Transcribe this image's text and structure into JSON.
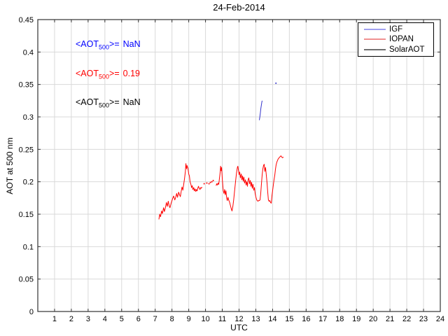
{
  "title": "24-Feb-2014",
  "axis": {
    "xlabel": "UTC",
    "ylabel": "AOT at 500 nm"
  },
  "annotations": [
    {
      "prefix": "<AOT",
      "sub": "500",
      "suffix": ">=",
      "value": "NaN",
      "color": "#0000ff"
    },
    {
      "prefix": "<AOT",
      "sub": "500",
      "suffix": ">=",
      "value": "0.19",
      "color": "#ff0000"
    },
    {
      "prefix": "<AOT",
      "sub": "500",
      "suffix": ">=",
      "value": "NaN",
      "color": "#000000"
    }
  ],
  "legend": {
    "position": "top-right",
    "entries": [
      {
        "label": "IGF",
        "swatch_color": "#a0a0f0"
      },
      {
        "label": "IOPAN",
        "swatch_color": "#f09090"
      },
      {
        "label": "SolarAOT",
        "swatch_color": "#707070"
      }
    ]
  },
  "colors": {
    "grid": "#d9d9d9",
    "axis_box": "#333333",
    "tick": "#333333"
  },
  "chart_data": {
    "type": "line",
    "title": "24-Feb-2014",
    "xlabel": "UTC",
    "ylabel": "AOT at 500 nm",
    "xlim": [
      0,
      24
    ],
    "ylim": [
      0,
      0.45
    ],
    "grid": true,
    "legend_position": "top-right",
    "xticks": [
      1,
      2,
      3,
      4,
      5,
      6,
      7,
      8,
      9,
      10,
      11,
      12,
      13,
      14,
      15,
      16,
      17,
      18,
      19,
      20,
      21,
      22,
      23,
      24
    ],
    "yticks": [
      0,
      0.05,
      0.1,
      0.15,
      0.2,
      0.25,
      0.3,
      0.35,
      0.4,
      0.45
    ],
    "ytick_labels": [
      "0",
      "0.05",
      "0.1",
      "0.15",
      "0.2",
      "0.25",
      "0.3",
      "0.35",
      "0.4",
      "0.45"
    ],
    "series": [
      {
        "name": "IGF",
        "color": "#3333cc",
        "mean_aot500": "NaN",
        "segments": [
          [
            [
              13.21,
              0.295
            ],
            [
              13.24,
              0.3
            ],
            [
              13.27,
              0.306
            ],
            [
              13.3,
              0.313
            ],
            [
              13.33,
              0.318
            ],
            [
              13.36,
              0.323
            ],
            [
              13.38,
              0.325
            ]
          ],
          [
            [
              14.2,
              0.352
            ]
          ]
        ]
      },
      {
        "name": "IOPAN",
        "color": "#ff0000",
        "mean_aot500": 0.19,
        "segments": [
          [
            [
              7.22,
              0.142
            ],
            [
              7.27,
              0.15
            ],
            [
              7.32,
              0.146
            ],
            [
              7.38,
              0.155
            ],
            [
              7.43,
              0.151
            ],
            [
              7.5,
              0.16
            ],
            [
              7.55,
              0.154
            ],
            [
              7.6,
              0.159
            ],
            [
              7.67,
              0.168
            ],
            [
              7.72,
              0.162
            ],
            [
              7.78,
              0.17
            ],
            [
              7.83,
              0.163
            ],
            [
              7.88,
              0.16
            ],
            [
              7.95,
              0.167
            ],
            [
              8.0,
              0.171
            ],
            [
              8.05,
              0.175
            ],
            [
              8.1,
              0.178
            ],
            [
              8.17,
              0.172
            ],
            [
              8.22,
              0.176
            ],
            [
              8.28,
              0.182
            ],
            [
              8.33,
              0.176
            ],
            [
              8.4,
              0.184
            ],
            [
              8.45,
              0.18
            ],
            [
              8.5,
              0.177
            ],
            [
              8.55,
              0.185
            ],
            [
              8.6,
              0.192
            ],
            [
              8.65,
              0.187
            ],
            [
              8.7,
              0.196
            ],
            [
              8.75,
              0.205
            ],
            [
              8.8,
              0.216
            ],
            [
              8.83,
              0.228
            ],
            [
              8.87,
              0.22
            ],
            [
              8.9,
              0.225
            ],
            [
              8.95,
              0.221
            ],
            [
              9.0,
              0.212
            ],
            [
              9.04,
              0.209
            ],
            [
              9.08,
              0.2
            ],
            [
              9.13,
              0.196
            ],
            [
              9.17,
              0.191
            ],
            [
              9.21,
              0.194
            ],
            [
              9.25,
              0.188
            ],
            [
              9.3,
              0.191
            ],
            [
              9.33,
              0.186
            ],
            [
              9.38,
              0.189
            ],
            [
              9.42,
              0.185
            ],
            [
              9.46,
              0.188
            ],
            [
              9.5,
              0.186
            ],
            [
              9.54,
              0.19
            ],
            [
              9.58,
              0.193
            ],
            [
              9.63,
              0.19
            ],
            [
              9.67,
              0.188
            ],
            [
              9.71,
              0.191
            ],
            [
              9.75,
              0.19
            ],
            [
              9.79,
              0.192
            ]
          ],
          [
            [
              9.92,
              0.197
            ]
          ],
          [
            [
              10.08,
              0.198
            ]
          ],
          [
            [
              10.21,
              0.197
            ]
          ],
          [
            [
              10.29,
              0.199
            ]
          ],
          [
            [
              10.38,
              0.2
            ]
          ],
          [
            [
              10.46,
              0.202
            ]
          ],
          [
            [
              10.63,
              0.194
            ],
            [
              10.67,
              0.197
            ],
            [
              10.71,
              0.195
            ],
            [
              10.75,
              0.198
            ],
            [
              10.79,
              0.196
            ],
            [
              10.83,
              0.205
            ],
            [
              10.88,
              0.216
            ],
            [
              10.9,
              0.224
            ],
            [
              10.93,
              0.217
            ],
            [
              10.96,
              0.222
            ],
            [
              11.0,
              0.205
            ],
            [
              11.03,
              0.195
            ],
            [
              11.06,
              0.186
            ],
            [
              11.1,
              0.182
            ],
            [
              11.14,
              0.188
            ],
            [
              11.18,
              0.18
            ],
            [
              11.22,
              0.186
            ],
            [
              11.26,
              0.175
            ],
            [
              11.3,
              0.171
            ],
            [
              11.34,
              0.176
            ],
            [
              11.38,
              0.172
            ],
            [
              11.43,
              0.169
            ],
            [
              11.48,
              0.164
            ],
            [
              11.54,
              0.158
            ],
            [
              11.58,
              0.155
            ],
            [
              11.63,
              0.162
            ],
            [
              11.68,
              0.172
            ],
            [
              11.73,
              0.185
            ],
            [
              11.79,
              0.2
            ],
            [
              11.85,
              0.214
            ],
            [
              11.9,
              0.222
            ],
            [
              11.93,
              0.224
            ],
            [
              11.97,
              0.217
            ],
            [
              12.0,
              0.211
            ],
            [
              12.04,
              0.215
            ],
            [
              12.08,
              0.206
            ],
            [
              12.13,
              0.212
            ],
            [
              12.17,
              0.203
            ],
            [
              12.21,
              0.209
            ],
            [
              12.25,
              0.201
            ],
            [
              12.29,
              0.207
            ],
            [
              12.33,
              0.198
            ],
            [
              12.38,
              0.203
            ],
            [
              12.42,
              0.195
            ],
            [
              12.46,
              0.2
            ],
            [
              12.5,
              0.193
            ],
            [
              12.54,
              0.203
            ],
            [
              12.58,
              0.206
            ],
            [
              12.63,
              0.197
            ],
            [
              12.67,
              0.202
            ],
            [
              12.71,
              0.193
            ],
            [
              12.75,
              0.199
            ],
            [
              12.79,
              0.19
            ],
            [
              12.83,
              0.196
            ],
            [
              12.88,
              0.187
            ],
            [
              12.92,
              0.191
            ],
            [
              12.96,
              0.182
            ],
            [
              13.0,
              0.177
            ],
            [
              13.04,
              0.173
            ],
            [
              13.08,
              0.171
            ],
            [
              13.13,
              0.17
            ],
            [
              13.17,
              0.171
            ],
            [
              13.21,
              0.171
            ],
            [
              13.25,
              0.172
            ],
            [
              13.29,
              0.181
            ],
            [
              13.33,
              0.195
            ],
            [
              13.38,
              0.211
            ],
            [
              13.42,
              0.22
            ],
            [
              13.46,
              0.225
            ],
            [
              13.5,
              0.227
            ],
            [
              13.54,
              0.216
            ],
            [
              13.58,
              0.222
            ],
            [
              13.63,
              0.209
            ],
            [
              13.67,
              0.198
            ],
            [
              13.71,
              0.184
            ],
            [
              13.75,
              0.172
            ],
            [
              13.79,
              0.17
            ],
            [
              13.83,
              0.171
            ],
            [
              13.88,
              0.168
            ],
            [
              13.92,
              0.167
            ],
            [
              13.96,
              0.178
            ],
            [
              14.0,
              0.186
            ],
            [
              14.04,
              0.194
            ],
            [
              14.08,
              0.202
            ],
            [
              14.13,
              0.21
            ],
            [
              14.17,
              0.219
            ],
            [
              14.21,
              0.226
            ],
            [
              14.25,
              0.23
            ],
            [
              14.33,
              0.235
            ],
            [
              14.42,
              0.238
            ],
            [
              14.5,
              0.24
            ],
            [
              14.58,
              0.237
            ],
            [
              14.65,
              0.238
            ]
          ]
        ]
      },
      {
        "name": "SolarAOT",
        "color": "#444444",
        "mean_aot500": "NaN",
        "segments": []
      }
    ]
  }
}
